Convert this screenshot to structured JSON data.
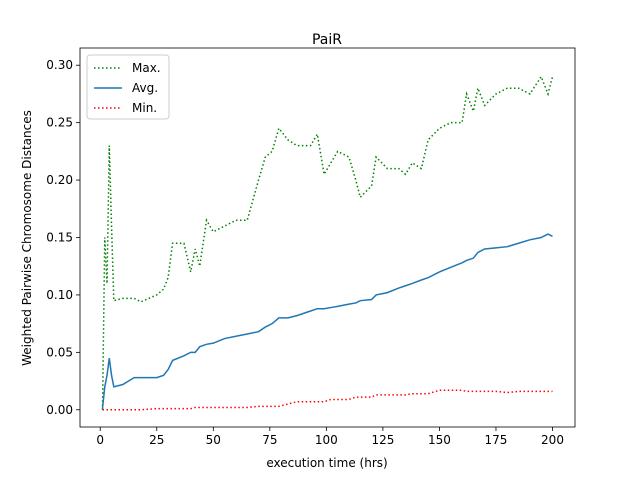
{
  "chart_data": {
    "type": "line",
    "title": "PaiR",
    "x_label": "execution time (hrs)",
    "y_label": "Weighted Pairwise Chromosome Distances",
    "x": [
      1,
      2,
      3,
      4,
      5,
      6,
      10,
      15,
      18,
      25,
      28,
      30,
      32,
      37,
      40,
      42,
      44,
      47,
      50,
      55,
      60,
      65,
      70,
      73,
      76,
      79,
      83,
      87,
      93,
      96,
      99,
      102,
      105,
      110,
      113,
      115,
      120,
      122,
      127,
      132,
      135,
      138,
      142,
      145,
      150,
      155,
      160,
      162,
      165,
      167,
      170,
      175,
      180,
      185,
      190,
      195,
      198,
      200
    ],
    "series": [
      {
        "name": "Max.",
        "color": "#008000",
        "style": "dotted",
        "values": [
          0.0,
          0.15,
          0.11,
          0.23,
          0.16,
          0.095,
          0.097,
          0.097,
          0.094,
          0.1,
          0.105,
          0.115,
          0.145,
          0.145,
          0.12,
          0.14,
          0.125,
          0.165,
          0.155,
          0.16,
          0.165,
          0.165,
          0.2,
          0.22,
          0.225,
          0.245,
          0.235,
          0.23,
          0.23,
          0.24,
          0.205,
          0.215,
          0.225,
          0.22,
          0.2,
          0.185,
          0.195,
          0.22,
          0.21,
          0.21,
          0.205,
          0.215,
          0.21,
          0.235,
          0.245,
          0.25,
          0.25,
          0.275,
          0.26,
          0.28,
          0.265,
          0.275,
          0.28,
          0.28,
          0.275,
          0.29,
          0.275,
          0.29
        ]
      },
      {
        "name": "Avg.",
        "color": "#1f77b4",
        "style": "solid",
        "values": [
          0.001,
          0.02,
          0.03,
          0.045,
          0.03,
          0.02,
          0.022,
          0.028,
          0.028,
          0.028,
          0.03,
          0.035,
          0.043,
          0.047,
          0.05,
          0.05,
          0.055,
          0.057,
          0.058,
          0.062,
          0.064,
          0.066,
          0.068,
          0.072,
          0.075,
          0.08,
          0.08,
          0.082,
          0.086,
          0.088,
          0.088,
          0.089,
          0.09,
          0.092,
          0.093,
          0.095,
          0.096,
          0.1,
          0.102,
          0.106,
          0.108,
          0.11,
          0.113,
          0.115,
          0.12,
          0.124,
          0.128,
          0.13,
          0.132,
          0.137,
          0.14,
          0.141,
          0.142,
          0.145,
          0.148,
          0.15,
          0.153,
          0.151
        ]
      },
      {
        "name": "Min.",
        "color": "#ff0000",
        "style": "dotted",
        "values": [
          0,
          0,
          0,
          0,
          0,
          0,
          0,
          0,
          0,
          0.001,
          0.001,
          0.001,
          0.001,
          0.001,
          0.001,
          0.002,
          0.002,
          0.002,
          0.002,
          0.002,
          0.002,
          0.002,
          0.003,
          0.003,
          0.003,
          0.003,
          0.005,
          0.007,
          0.007,
          0.007,
          0.007,
          0.009,
          0.009,
          0.009,
          0.011,
          0.011,
          0.011,
          0.013,
          0.013,
          0.013,
          0.013,
          0.014,
          0.014,
          0.014,
          0.017,
          0.017,
          0.017,
          0.016,
          0.016,
          0.016,
          0.016,
          0.016,
          0.015,
          0.016,
          0.016,
          0.016,
          0.016,
          0.016
        ]
      }
    ],
    "xlim": [
      -8.95,
      209.95
    ],
    "xticks": [
      0,
      25,
      50,
      75,
      100,
      125,
      150,
      175,
      200
    ],
    "ylim": [
      -0.015,
      0.315
    ],
    "yticks": [
      {
        "value": 0,
        "label": "0.00"
      },
      {
        "value": 0.05,
        "label": "0.05"
      },
      {
        "value": 0.1,
        "label": "0.10"
      },
      {
        "value": 0.15,
        "label": "0.15"
      },
      {
        "value": 0.2,
        "label": "0.20"
      },
      {
        "value": 0.25,
        "label": "0.25"
      },
      {
        "value": 0.3,
        "label": "0.30"
      }
    ],
    "legend": "upper left",
    "grid": false
  }
}
